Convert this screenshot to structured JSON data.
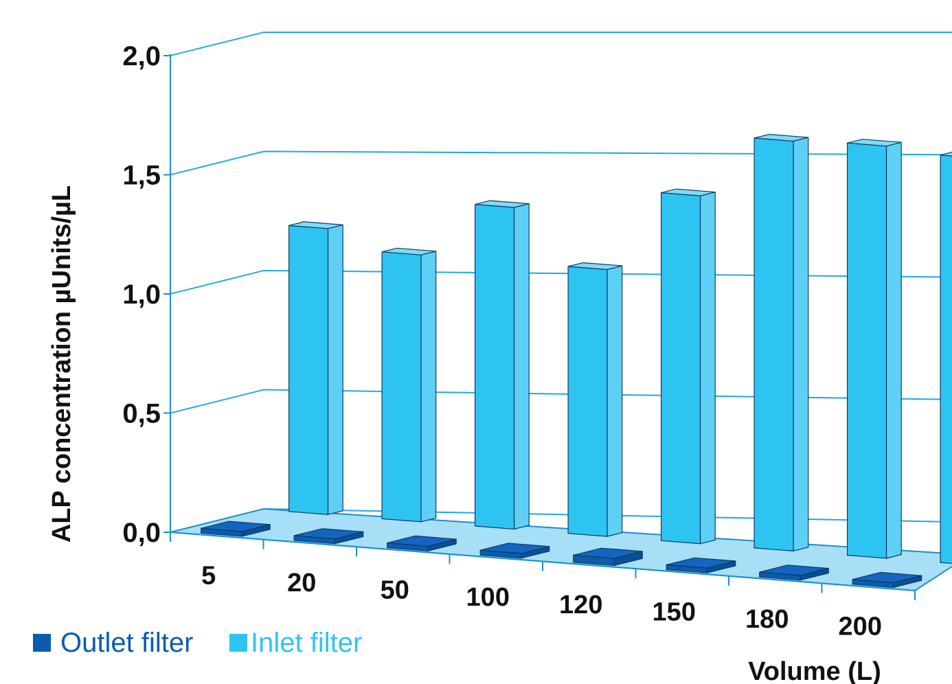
{
  "chart_data": {
    "type": "bar",
    "title": "",
    "xlabel": "Volume (L)",
    "ylabel": "ALP concentration µUnits/µL",
    "ylim": [
      0,
      2.0
    ],
    "yticks": [
      "0,0",
      "0,5",
      "1,0",
      "1,5",
      "2,0"
    ],
    "categories": [
      "5",
      "20",
      "50",
      "100",
      "120",
      "150",
      "180",
      "200"
    ],
    "series": [
      {
        "name": "Outlet filter",
        "color": "#0b5cad",
        "values": [
          0.02,
          0.02,
          0.02,
          0.02,
          0.03,
          0.02,
          0.02,
          0.02
        ]
      },
      {
        "name": "Inlet filter",
        "color": "#2ec4f2",
        "values": [
          1.2,
          1.12,
          1.35,
          1.12,
          1.46,
          1.72,
          1.73,
          1.71
        ]
      }
    ],
    "grid": true,
    "legend": "bottom-left"
  }
}
